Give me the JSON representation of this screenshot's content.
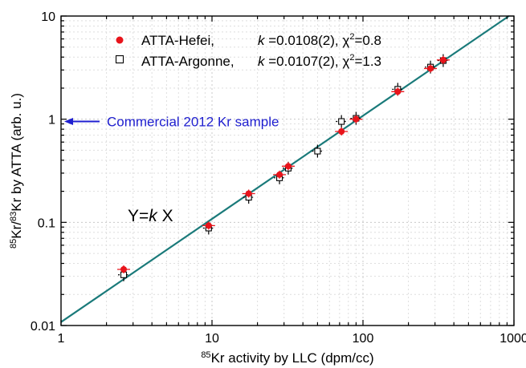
{
  "chart_data": {
    "type": "scatter",
    "title": "",
    "x_scale": "log",
    "y_scale": "log",
    "xlim": [
      1,
      1000
    ],
    "ylim": [
      0.01,
      10
    ],
    "grid": true,
    "legend_position": "top-left",
    "x_ticks": [
      {
        "value": 1,
        "label": "1"
      },
      {
        "value": 10,
        "label": "10"
      },
      {
        "value": 100,
        "label": "100"
      },
      {
        "value": 1000,
        "label": "1000"
      }
    ],
    "y_ticks": [
      {
        "value": 0.01,
        "label": "0.01"
      },
      {
        "value": 0.1,
        "label": "0.1"
      },
      {
        "value": 1,
        "label": "1"
      },
      {
        "value": 10,
        "label": "10"
      }
    ],
    "xlabel": {
      "sup": "85",
      "text": "Kr activity by LLC (dpm/cc)"
    },
    "ylabel": {
      "sup1": "85",
      "mid": "Kr/",
      "sup2": "83",
      "text": "Kr by ATTA (arb. u.)"
    },
    "series": [
      {
        "name": "ATTA-Hefei,",
        "fit": {
          "k_italic": "k",
          "k_text": " =0.0108(2), ",
          "chi": "χ",
          "chi_sup": "2",
          "chi_text": "=0.8"
        },
        "marker": "filled-circle",
        "color": "#e8141b",
        "points": [
          {
            "x": 2.6,
            "y": 0.035
          },
          {
            "x": 9.5,
            "y": 0.093
          },
          {
            "x": 17.5,
            "y": 0.19
          },
          {
            "x": 28,
            "y": 0.29
          },
          {
            "x": 32,
            "y": 0.35
          },
          {
            "x": 72,
            "y": 0.76
          },
          {
            "x": 90,
            "y": 1.0
          },
          {
            "x": 170,
            "y": 1.85
          },
          {
            "x": 280,
            "y": 3.1
          },
          {
            "x": 340,
            "y": 3.75
          }
        ]
      },
      {
        "name": "ATTA-Argonne,",
        "fit": {
          "k_italic": "k",
          "k_text": " =0.0107(2), ",
          "chi": "χ",
          "chi_sup": "2",
          "chi_text": "=1.3"
        },
        "marker": "open-square",
        "color": "#000000",
        "points": [
          {
            "x": 2.6,
            "y": 0.031
          },
          {
            "x": 9.5,
            "y": 0.088
          },
          {
            "x": 17.5,
            "y": 0.175
          },
          {
            "x": 28,
            "y": 0.27
          },
          {
            "x": 32,
            "y": 0.335
          },
          {
            "x": 50,
            "y": 0.49
          },
          {
            "x": 72,
            "y": 0.95
          },
          {
            "x": 90,
            "y": 1.02
          },
          {
            "x": 170,
            "y": 1.95
          },
          {
            "x": 280,
            "y": 3.2
          },
          {
            "x": 340,
            "y": 3.7
          }
        ]
      }
    ],
    "fit_line": {
      "slope_k": 0.0108,
      "color": "#1a7a7a"
    },
    "formula": {
      "y": "Y=",
      "k": "k",
      "x": " X"
    },
    "annotation": {
      "text": "Commercial 2012 Kr sample",
      "y_value": 0.95,
      "color": "#1f1fd0"
    }
  }
}
